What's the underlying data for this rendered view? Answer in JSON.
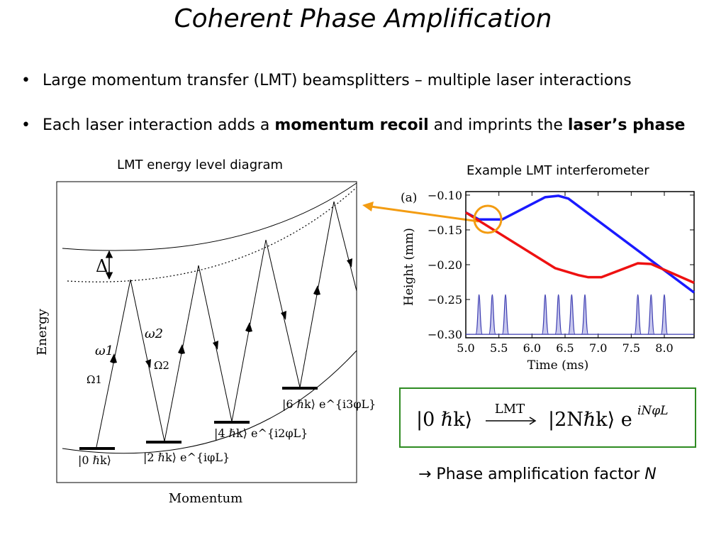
{
  "title": "Coherent Phase Amplification",
  "bullets": [
    {
      "mark": "•",
      "text": "Large momentum transfer (LMT) beamsplitters – multiple laser interactions"
    },
    {
      "mark": "•",
      "pre": "Each laser interaction adds a ",
      "bold1": "momentum recoil",
      "mid": " and imprints the ",
      "bold2": "laser’s phase"
    }
  ],
  "diagram": {
    "caption": "LMT energy level diagram",
    "y_label": "Energy",
    "x_label": "Momentum",
    "delta_label": "Δ",
    "omega1": "ω1",
    "omega2": "ω2",
    "rabi1": "Ω1",
    "rabi2": "Ω2",
    "states": [
      "|0 ℏk⟩",
      "|2 ℏk⟩ e^{iφL}",
      "|4 ℏk⟩ e^{i2φL}",
      "|6 ℏk⟩ e^{i3φL}"
    ]
  },
  "interferometer": {
    "caption": "Example LMT interferometer",
    "panel_label": "(a)",
    "highlight_color": "#f39c12",
    "chart_data": {
      "type": "line",
      "xlabel": "Time (ms)",
      "ylabel": "Height (mm)",
      "xlim": [
        5.0,
        8.45
      ],
      "ylim": [
        -0.305,
        -0.095
      ],
      "x_ticks": [
        "5.0",
        "5.5",
        "6.0",
        "6.5",
        "7.0",
        "7.5",
        "8.0"
      ],
      "y_ticks": [
        "−0.10",
        "−0.15",
        "−0.20",
        "−0.25",
        "−0.30"
      ],
      "series": [
        {
          "color": "#1a1aff",
          "x": [
            5.0,
            5.2,
            5.55,
            6.2,
            6.4,
            6.55,
            8.45
          ],
          "y": [
            -0.125,
            -0.135,
            -0.135,
            -0.103,
            -0.101,
            -0.105,
            -0.24
          ]
        },
        {
          "color": "#ee1111",
          "x": [
            5.0,
            6.35,
            6.7,
            6.85,
            7.05,
            7.6,
            7.8,
            8.45
          ],
          "y": [
            -0.125,
            -0.205,
            -0.215,
            -0.218,
            -0.218,
            -0.198,
            -0.199,
            -0.226
          ]
        },
        {
          "color": "#3b3bb0",
          "pulses": [
            5.2,
            5.4,
            5.6,
            6.2,
            6.4,
            6.6,
            6.8,
            7.6,
            7.8,
            8.0
          ],
          "base": -0.3,
          "peak": -0.243
        }
      ]
    }
  },
  "equation": {
    "left": "|0 ℏk⟩",
    "arrow_label": "LMT",
    "right": "|2Nℏk⟩ e",
    "exponent": "iNφL"
  },
  "footer": {
    "arrow": "→",
    "text": " Phase amplification factor ",
    "factor": "N"
  }
}
